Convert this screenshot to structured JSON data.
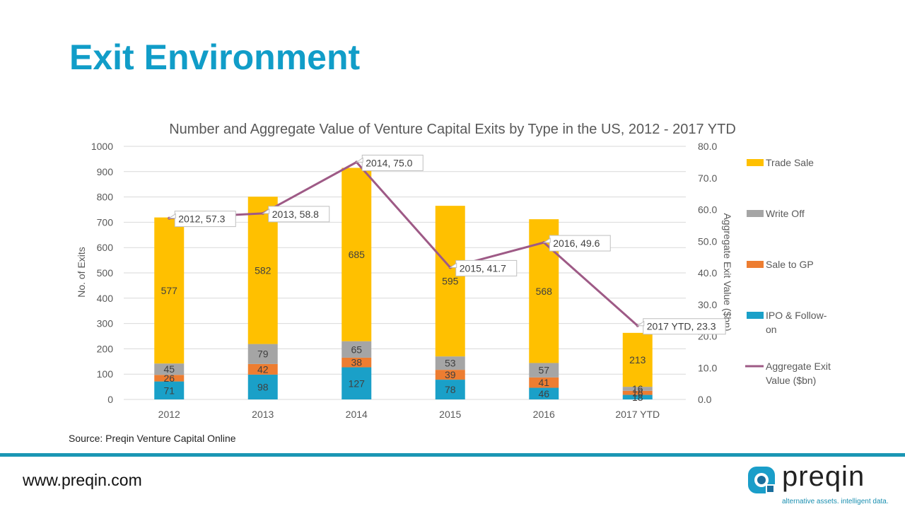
{
  "slide": {
    "title": "Exit Environment",
    "source": "Source: Preqin Venture Capital Online",
    "website": "www.preqin.com",
    "logo_text": "preqin",
    "tagline": "alternative assets.  intelligent data.",
    "colors": {
      "title": "#119dc8",
      "divider": "#1a96b4",
      "trade_sale": "#ffc000",
      "write_off": "#a5a5a5",
      "sale_to_gp": "#ed7d31",
      "ipo": "#1aa0c8",
      "line": "#9e5a86"
    }
  },
  "chart_data": {
    "type": "bar",
    "stacked": true,
    "title": "Number and Aggregate Value of Venture Capital Exits by Type in the US, 2012 - 2017 YTD",
    "xlabel": "",
    "ylabel": "No. of Exits",
    "y2label": "Aggregate Exit Value ($bn)",
    "ylim": [
      0,
      1000
    ],
    "y2lim": [
      0,
      80
    ],
    "yticks": [
      "0",
      "100",
      "200",
      "300",
      "400",
      "500",
      "600",
      "700",
      "800",
      "900",
      "1000"
    ],
    "y2ticks": [
      "0.0",
      "10.0",
      "20.0",
      "30.0",
      "40.0",
      "50.0",
      "60.0",
      "70.0",
      "80.0"
    ],
    "grid": true,
    "legend_position": "right",
    "categories": [
      "2012",
      "2013",
      "2014",
      "2015",
      "2016",
      "2017 YTD"
    ],
    "series": [
      {
        "name": "IPO & Follow-on",
        "legend_label_lines": [
          "IPO & Follow-",
          "on"
        ],
        "values": [
          71,
          98,
          127,
          78,
          46,
          18
        ],
        "color": "#1aa0c8"
      },
      {
        "name": "Sale to GP",
        "legend_label_lines": [
          "Sale to GP"
        ],
        "values": [
          26,
          42,
          38,
          39,
          41,
          16
        ],
        "color": "#ed7d31"
      },
      {
        "name": "Write Off",
        "legend_label_lines": [
          "Write Off"
        ],
        "values": [
          45,
          79,
          65,
          53,
          57,
          16
        ],
        "color": "#a5a5a5"
      },
      {
        "name": "Trade Sale",
        "legend_label_lines": [
          "Trade Sale"
        ],
        "values": [
          577,
          582,
          685,
          595,
          568,
          213
        ],
        "color": "#ffc000"
      }
    ],
    "line_series": {
      "name": "Aggregate Exit Value ($bn)",
      "legend_label_lines": [
        "Aggregate Exit",
        "Value ($bn)"
      ],
      "axis": "secondary",
      "values": [
        57.3,
        58.8,
        75.0,
        41.7,
        49.6,
        23.3
      ],
      "labels": [
        "2012, 57.3",
        "2013, 58.8",
        "2014, 75.0",
        "2015, 41.7",
        "2016, 49.6",
        "2017 YTD, 23.3"
      ],
      "color": "#9e5a86"
    },
    "legend_order": [
      "Trade Sale",
      "Write Off",
      "Sale to GP",
      "IPO & Follow-on",
      "Aggregate Exit Value ($bn)"
    ]
  }
}
